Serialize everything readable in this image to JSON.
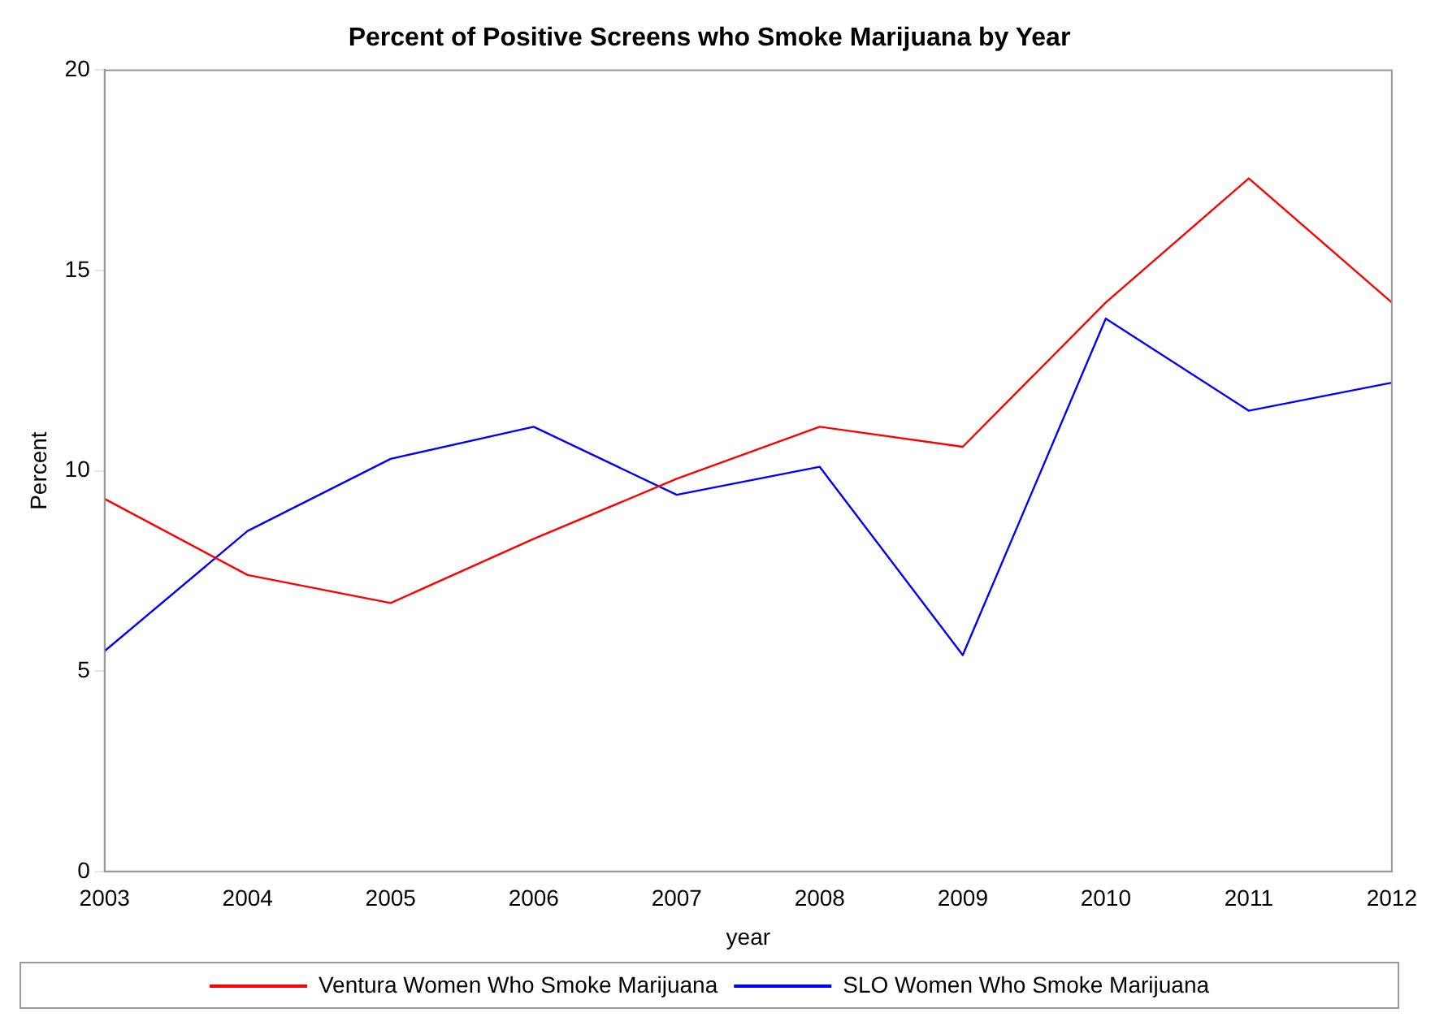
{
  "chart_data": {
    "type": "line",
    "title": "Percent of Positive Screens who Smoke Marijuana by Year",
    "xlabel": "year",
    "ylabel": "Percent",
    "x": [
      2003,
      2004,
      2005,
      2006,
      2007,
      2008,
      2009,
      2010,
      2011,
      2012
    ],
    "series": [
      {
        "name": "Ventura Women Who Smoke Marijuana",
        "color": "#ff0000",
        "values": [
          9.3,
          7.4,
          6.7,
          8.3,
          9.8,
          11.1,
          10.6,
          14.2,
          17.3,
          14.2
        ]
      },
      {
        "name": "SLO Women Who Smoke Marijuana",
        "color": "#0000ff",
        "values": [
          5.5,
          8.5,
          10.3,
          11.1,
          9.4,
          10.1,
          5.4,
          13.8,
          11.5,
          12.2
        ]
      }
    ],
    "xlim": [
      2003,
      2012
    ],
    "xticks": [
      2003,
      2004,
      2005,
      2006,
      2007,
      2008,
      2009,
      2010,
      2011,
      2012
    ],
    "ylim": [
      0,
      20
    ],
    "yticks": [
      0,
      5,
      10,
      15,
      20
    ],
    "grid": false,
    "legend": "bottom",
    "marker": "none",
    "line_style": "solid"
  }
}
